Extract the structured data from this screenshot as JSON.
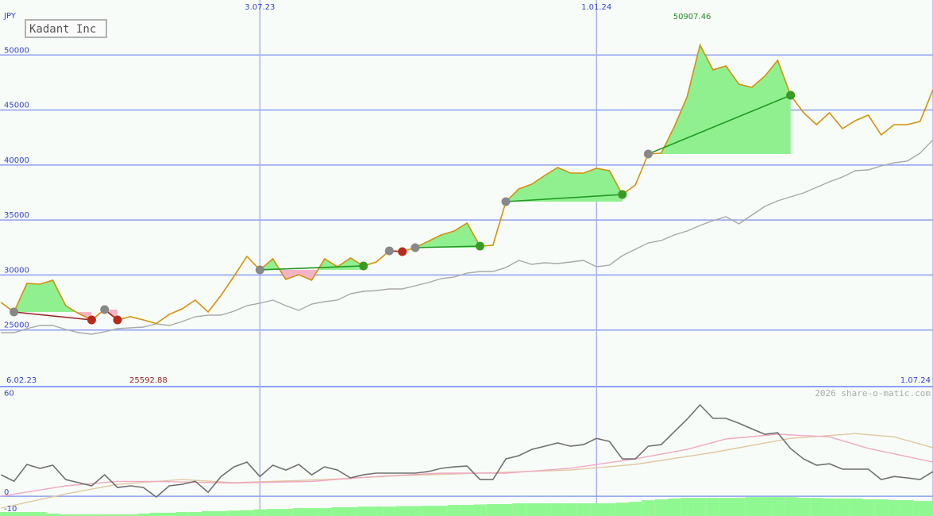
{
  "chart_data": [
    {
      "type": "line",
      "title": "Kadant Inc",
      "y_label": "JPY",
      "x": [
        1,
        2,
        3,
        4,
        5,
        6,
        7,
        8,
        9,
        10,
        11,
        12,
        13,
        14,
        15,
        16,
        17,
        18,
        19,
        20,
        21,
        22,
        23,
        24,
        25,
        26,
        27,
        28,
        29,
        30,
        31,
        32,
        33,
        34,
        35,
        36,
        37,
        38,
        39,
        40,
        41,
        42,
        43,
        44,
        45,
        46,
        47,
        48,
        49,
        50,
        51,
        52,
        53,
        54,
        55,
        56,
        57,
        58,
        59,
        60,
        61,
        62,
        63,
        64,
        65,
        66,
        67,
        68,
        69,
        70,
        71,
        72,
        73
      ],
      "xlim": [
        0.92,
        73
      ],
      "xticks": [
        {
          "value": 0,
          "label": "6.02.23"
        },
        {
          "value": 21,
          "label": "3.07.23"
        },
        {
          "value": 47,
          "label": "1.01.24"
        },
        {
          "value": 73,
          "label": "1.07.24"
        }
      ],
      "ylim": [
        20000,
        55000
      ],
      "yticks": [
        25000,
        30000,
        35000,
        40000,
        45000,
        50000
      ],
      "grid": true,
      "series": [
        {
          "color": "#d4900c",
          "values": [
            27506,
            26640,
            29237,
            29165,
            29526,
            27217,
            26495,
            25918,
            26856,
            25918,
            26206,
            25918,
            25592.88,
            26423,
            26928,
            27722,
            26640,
            28155,
            29887,
            31691,
            30465,
            31475,
            29599,
            30032,
            29526,
            31475,
            30753,
            31547,
            30826,
            31186,
            32197,
            32124,
            32485,
            33063,
            33640,
            34001,
            34722,
            32629,
            32702,
            36671,
            37825,
            38258,
            39052,
            39774,
            39268,
            39268,
            39702,
            39485,
            37320,
            38186,
            41001,
            41074,
            43454,
            46197,
            50907.46,
            48651,
            49012,
            47352,
            47063,
            48073,
            49516,
            46341,
            44754,
            43670,
            44754,
            43310,
            44032,
            44536,
            42733,
            43670,
            43670,
            43959,
            46846
          ]
        },
        {
          "color": "#a8a8a8",
          "values": [
            24763,
            24763,
            25124,
            25413,
            25413,
            25052,
            24763,
            24619,
            24835,
            25124,
            25196,
            25268,
            25557,
            25413,
            25774,
            26207,
            26351,
            26351,
            26712,
            27217,
            27434,
            27722,
            27217,
            26784,
            27361,
            27578,
            27722,
            28300,
            28516,
            28588,
            28733,
            28733,
            29021,
            29310,
            29671,
            29815,
            30176,
            30320,
            30320,
            30681,
            31331,
            30970,
            31114,
            31042,
            31186,
            31331,
            30753,
            30898,
            31764,
            32341,
            32918,
            33135,
            33640,
            34001,
            34506,
            34939,
            35300,
            34651,
            35444,
            36238,
            36743,
            37104,
            37465,
            37970,
            38476,
            38909,
            39486,
            39558,
            39919,
            40208,
            40352,
            41074,
            42301
          ]
        }
      ],
      "trades": [
        {
          "entry": 2,
          "exit": 8
        },
        {
          "entry": 9,
          "exit": 10
        },
        {
          "entry": 21,
          "exit": 29
        },
        {
          "entry": 31,
          "exit": 32
        },
        {
          "entry": 33,
          "exit": 38
        },
        {
          "entry": 40,
          "exit": 49
        },
        {
          "entry": 51,
          "exit": 62
        }
      ],
      "trade_colors": {
        "win_line": "#229922",
        "win_fill": "#90f090",
        "win_dot": "#3a9a22",
        "loss_line": "#992222",
        "loss_fill": "#f4b4c8",
        "loss_dot": "#b82a1a",
        "entry_dot": "#888888"
      },
      "max_color": "#228822",
      "min_color": "#992222"
    },
    {
      "type": "line",
      "watermark": "2026 share-o-matic.com",
      "ylim": [
        -12,
        66
      ],
      "yticks": [
        -10,
        0,
        60
      ],
      "series": [
        {
          "color": "#707070",
          "values": [
            13.0,
            9.1,
            19.3,
            16.9,
            18.8,
            10.1,
            8.2,
            6.3,
            13.0,
            5.3,
            6.3,
            5.3,
            -0.5,
            6.3,
            7.2,
            9.1,
            2.4,
            12.0,
            17.8,
            20.7,
            12.0,
            18.8,
            15.9,
            19.3,
            13.0,
            17.8,
            15.9,
            11.1,
            13.0,
            14.0,
            14.0,
            14.0,
            14.0,
            14.9,
            16.9,
            17.8,
            18.3,
            10.1,
            10.1,
            22.6,
            24.6,
            28.4,
            30.3,
            32.3,
            30.3,
            31.3,
            35.1,
            33.2,
            22.6,
            22.6,
            30.3,
            31.3,
            39.0,
            46.7,
            55.4,
            47.2,
            47.2,
            44.3,
            40.9,
            37.6,
            38.5,
            28.9,
            22.6,
            18.8,
            19.7,
            16.4,
            16.4,
            16.4,
            10.1,
            12.0,
            11.1,
            10.1,
            14.9
          ]
        },
        {
          "color": "#f0a8c4",
          "x": [
            1,
            6,
            10,
            13,
            19,
            25,
            30,
            35,
            40,
            45,
            50,
            54,
            57,
            61,
            65,
            68,
            73
          ],
          "values": [
            0,
            6.3,
            9,
            9,
            8,
            9,
            12,
            14,
            14,
            17,
            22.6,
            28.4,
            34.7,
            37.6,
            36,
            29,
            20.7
          ]
        },
        {
          "color": "#e0c8a0",
          "x": [
            1,
            6,
            10,
            15,
            19,
            26,
            32,
            38,
            45,
            50,
            56,
            62,
            67,
            70,
            73
          ],
          "values": [
            -7.2,
            1.4,
            7.2,
            10.1,
            8.2,
            10.1,
            12.5,
            14,
            15.9,
            19.3,
            26.5,
            35.1,
            38,
            36,
            29.4
          ]
        }
      ],
      "bars": {
        "color": "#90f890",
        "values": [
          -9.6,
          -9.6,
          -9.6,
          -9.6,
          -10.5,
          -11,
          -11,
          -11,
          -11,
          -11,
          -11,
          -10.5,
          -10,
          -10,
          -9.6,
          -9.6,
          -9,
          -9,
          -8.7,
          -8.5,
          -8,
          -7.7,
          -7.7,
          -7.2,
          -7.2,
          -7.2,
          -6.7,
          -6.7,
          -6.3,
          -6.3,
          -6.3,
          -6,
          -6,
          -5.8,
          -5.8,
          -5.3,
          -5.3,
          -5,
          -4.8,
          -4.8,
          -4.3,
          -4.3,
          -4.3,
          -4.3,
          -4.3,
          -4.3,
          -4.3,
          -4.3,
          -3.9,
          -3.4,
          -2.4,
          -1.9,
          -1.4,
          -1.0,
          -1.0,
          -1.0,
          -1.0,
          -1.0,
          -0.5,
          -0.5,
          -0.5,
          -0.5,
          -1.0,
          -1.0,
          -1.4,
          -1.4,
          -1.4,
          -1.9,
          -1.9,
          -2.4,
          -2.4,
          -2.9,
          -2.9
        ]
      }
    }
  ]
}
